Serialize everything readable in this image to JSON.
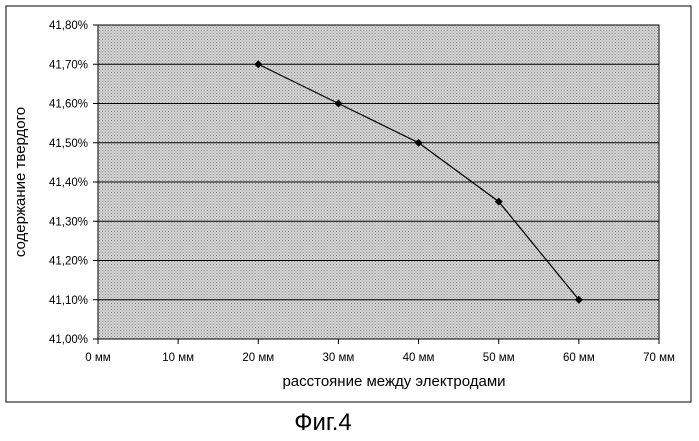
{
  "chart_data": {
    "type": "line",
    "x": [
      20,
      30,
      40,
      50,
      60
    ],
    "series": [
      {
        "values": [
          41.7,
          41.6,
          41.5,
          41.35,
          41.1
        ]
      }
    ],
    "xlabel": "расстояние между электродами",
    "ylabel": "содержание твердого",
    "xlim": [
      0,
      70
    ],
    "ylim": [
      41.0,
      41.8
    ],
    "x_ticks": [
      "0 мм",
      "10 мм",
      "20 мм",
      "30 мм",
      "40 мм",
      "50 мм",
      "60 мм",
      "70 мм"
    ],
    "y_ticks": [
      "41,00%",
      "41,10%",
      "41,20%",
      "41,30%",
      "41,40%",
      "41,50%",
      "41,60%",
      "41,70%",
      "41,80%"
    ],
    "grid": true,
    "colors": {
      "plot_bg": "#c8c8c8",
      "line": "#000000",
      "grid": "#000000"
    }
  },
  "caption": "Фиг.4"
}
